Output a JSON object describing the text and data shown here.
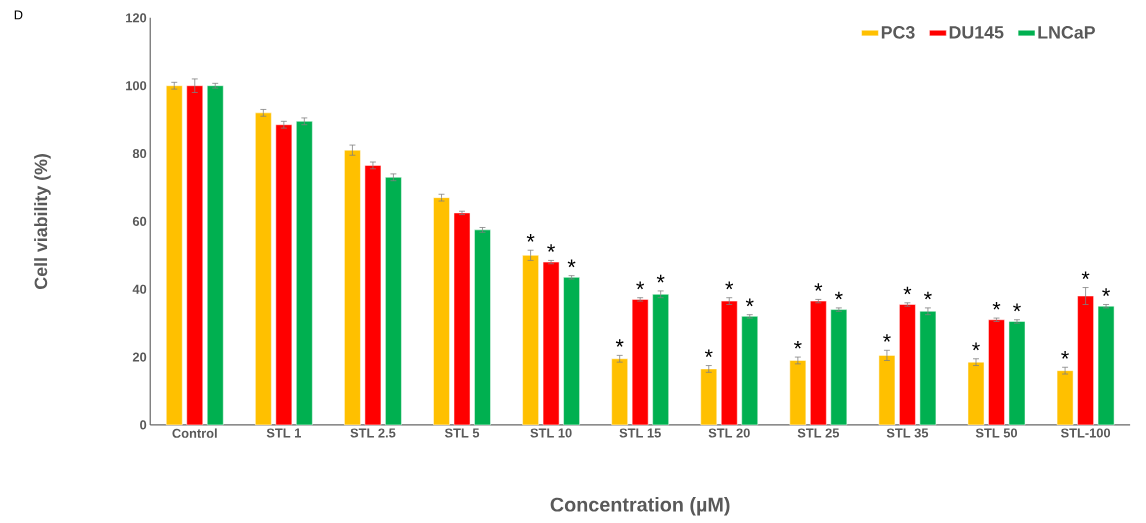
{
  "chart_data": {
    "type": "bar",
    "xlabel": "Concentration (µM)",
    "ylabel": "Cell viability (%)",
    "categories": [
      "Control",
      "STL 1",
      "STL 2.5",
      "STL 5",
      "STL 10",
      "STL 15",
      "STL 20",
      "STL 25",
      "STL 35",
      "STL 50",
      "STL-100"
    ],
    "series": [
      {
        "name": "PC3",
        "color": "#ffc000",
        "values": [
          100,
          92,
          81,
          67,
          50,
          19.5,
          16.5,
          19,
          20.5,
          18.5,
          16
        ],
        "errors": [
          1,
          1,
          1.5,
          1,
          1.5,
          1,
          1,
          1,
          1.5,
          1,
          1
        ],
        "value_labels": [
          null,
          null,
          null,
          null,
          "*",
          "*",
          "*",
          "*",
          "*",
          "*",
          "*"
        ]
      },
      {
        "name": "DU145",
        "color": "#ff0000",
        "values": [
          100,
          88.5,
          76.5,
          62.5,
          48,
          37,
          36.5,
          36.5,
          35.5,
          31,
          38
        ],
        "errors": [
          2,
          1,
          1,
          0.5,
          0.5,
          0.5,
          1,
          0.5,
          0.5,
          0.5,
          2.5
        ],
        "value_labels": [
          null,
          null,
          null,
          null,
          "*",
          "*",
          "*",
          "*",
          "*",
          "*",
          "*"
        ]
      },
      {
        "name": "LNCaP",
        "color": "#00b050",
        "values": [
          100,
          89.5,
          73,
          57.5,
          43.5,
          38.5,
          32,
          34,
          33.5,
          30.5,
          35
        ],
        "errors": [
          0.7,
          1,
          1,
          0.7,
          0.5,
          1,
          0.5,
          0.5,
          1,
          0.5,
          0.5
        ],
        "value_labels": [
          null,
          null,
          null,
          null,
          "*",
          "*",
          "*",
          "*",
          "*",
          "*",
          "*"
        ]
      }
    ],
    "ylim": [
      0,
      120
    ],
    "yticks": [
      0,
      20,
      40,
      60,
      80,
      100,
      120
    ],
    "legend": "top right",
    "annotations": [
      "D"
    ]
  }
}
